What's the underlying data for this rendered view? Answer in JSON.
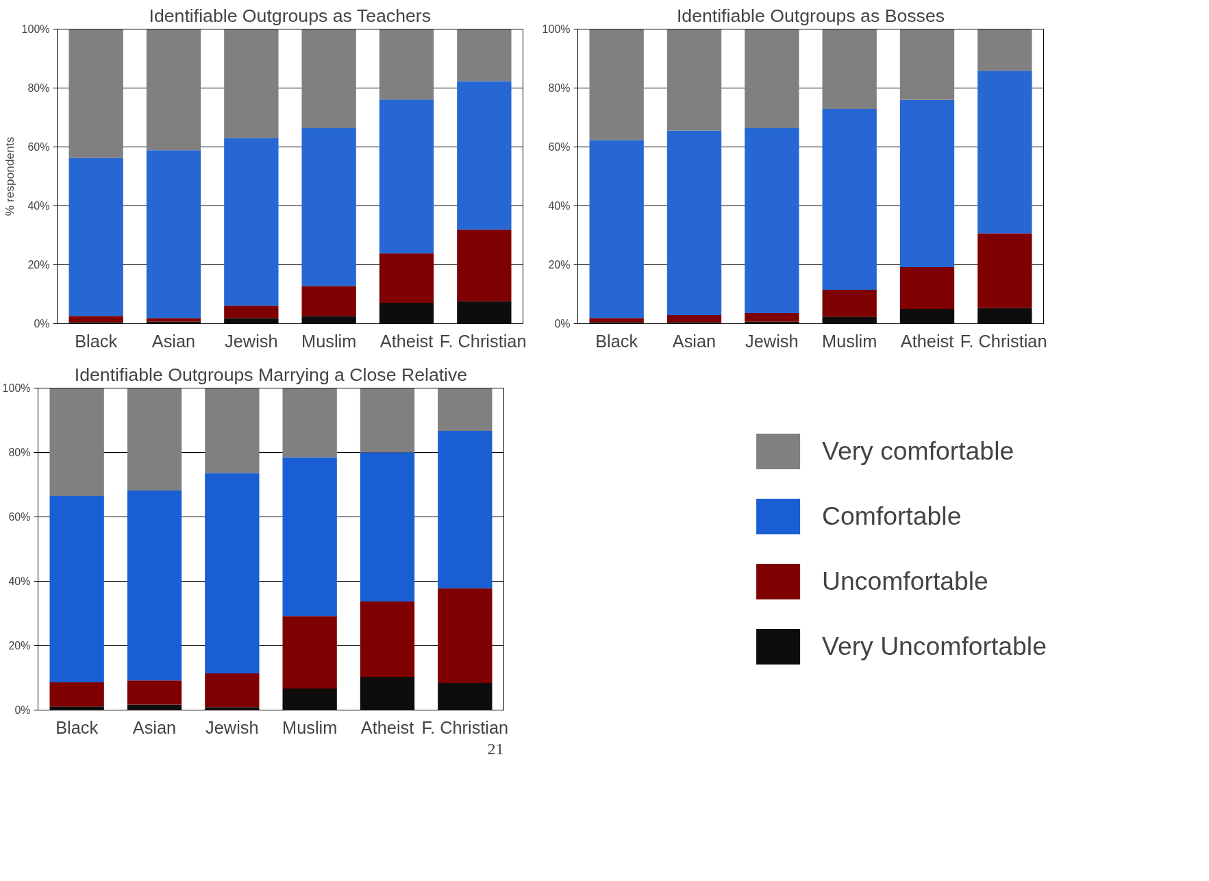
{
  "chart_data": [
    {
      "type": "bar",
      "stacked": true,
      "title": "Identifiable Outgroups as Teachers",
      "ylabel": "% respondents",
      "categories": [
        "Black",
        "Asian",
        "Jewish",
        "Muslim",
        "Atheist",
        "F. Christian"
      ],
      "ylim": [
        0,
        100
      ],
      "yticks": [
        {
          "value": 0,
          "label": "0%"
        },
        {
          "value": 20,
          "label": "20%"
        },
        {
          "value": 40,
          "label": "40%"
        },
        {
          "value": 60,
          "label": "60%"
        },
        {
          "value": 80,
          "label": "80%"
        },
        {
          "value": 100,
          "label": "100%"
        }
      ],
      "grid": "y",
      "series": [
        {
          "color": "#0d0d0d",
          "values": [
            0.5,
            0.7,
            1.9,
            2.6,
            7.1,
            7.6
          ]
        },
        {
          "color": "#7f0000",
          "values": [
            2.1,
            1.2,
            4.2,
            10.2,
            16.8,
            24.3
          ]
        },
        {
          "color": "#2667d4",
          "values": [
            53.7,
            57.0,
            57.0,
            53.6,
            52.2,
            50.4
          ]
        },
        {
          "color": "#808080",
          "values": [
            43.7,
            41.1,
            36.9,
            33.6,
            23.9,
            17.7
          ]
        }
      ]
    },
    {
      "type": "bar",
      "stacked": true,
      "title": "Identifiable Outgroups as Bosses",
      "categories": [
        "Black",
        "Asian",
        "Jewish",
        "Muslim",
        "Atheist",
        "F. Christian"
      ],
      "ylim": [
        0,
        100
      ],
      "yticks": [
        {
          "value": 0,
          "label": "0%"
        },
        {
          "value": 20,
          "label": "20%"
        },
        {
          "value": 40,
          "label": "40%"
        },
        {
          "value": 60,
          "label": "60%"
        },
        {
          "value": 80,
          "label": "80%"
        },
        {
          "value": 100,
          "label": "100%"
        }
      ],
      "grid": "y",
      "series": [
        {
          "color": "#0d0d0d",
          "values": [
            0.5,
            0.5,
            0.7,
            2.4,
            5.0,
            5.3
          ]
        },
        {
          "color": "#7f0000",
          "values": [
            1.4,
            2.4,
            2.9,
            9.1,
            14.2,
            25.4
          ]
        },
        {
          "color": "#2667d4",
          "values": [
            60.4,
            62.6,
            62.8,
            61.4,
            56.8,
            55.2
          ]
        },
        {
          "color": "#808080",
          "values": [
            37.9,
            34.5,
            33.6,
            27.1,
            24.0,
            14.1
          ]
        }
      ]
    },
    {
      "type": "bar",
      "stacked": true,
      "title": "Identifiable Outgroups Marrying a Close Relative",
      "categories": [
        "Black",
        "Asian",
        "Jewish",
        "Muslim",
        "Atheist",
        "F. Christian"
      ],
      "ylim": [
        0,
        100
      ],
      "yticks": [
        {
          "value": 0,
          "label": "0%"
        },
        {
          "value": 20,
          "label": "20%"
        },
        {
          "value": 40,
          "label": "40%"
        },
        {
          "value": 60,
          "label": "60%"
        },
        {
          "value": 80,
          "label": "80%"
        },
        {
          "value": 100,
          "label": "100%"
        }
      ],
      "grid": "y",
      "legend": "right",
      "annotations": [
        "21"
      ],
      "series": [
        {
          "name": "Very Uncomfortable",
          "color": "#0d0d0d",
          "values": [
            1.1,
            1.7,
            0.9,
            6.7,
            10.3,
            8.4
          ]
        },
        {
          "name": "Uncomfortable",
          "color": "#7f0000",
          "values": [
            7.5,
            7.5,
            10.5,
            22.5,
            23.4,
            29.4
          ]
        },
        {
          "name": "Comfortable",
          "color": "#1a5ed4",
          "values": [
            57.9,
            59.0,
            62.2,
            49.3,
            46.3,
            48.9
          ]
        },
        {
          "name": "Very comfortable",
          "color": "#808080",
          "values": [
            33.5,
            31.8,
            26.4,
            21.5,
            20.0,
            13.3
          ]
        }
      ]
    }
  ]
}
